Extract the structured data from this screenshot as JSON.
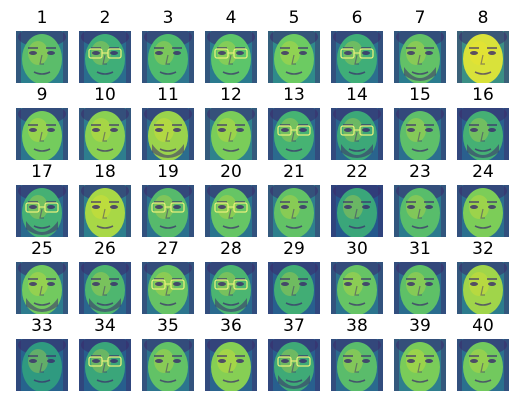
{
  "grid": {
    "rows": 5,
    "cols": 8,
    "colormap": "viridis",
    "colors": {
      "dark": "#3b2a6b",
      "teal": "#1f9a8a",
      "green": "#4cc26c",
      "yellow": "#fde725"
    },
    "faces": [
      {
        "label": "1",
        "glasses": false,
        "beard": false,
        "tone": "#5bbd6a",
        "bg": "#2b7f8e"
      },
      {
        "label": "2",
        "glasses": true,
        "beard": false,
        "tone": "#3fae78",
        "bg": "#2a6c8e"
      },
      {
        "label": "3",
        "glasses": false,
        "beard": false,
        "tone": "#4fbb6e",
        "bg": "#2d758f"
      },
      {
        "label": "4",
        "glasses": true,
        "beard": false,
        "tone": "#5cc56a",
        "bg": "#2a7a8e"
      },
      {
        "label": "5",
        "glasses": false,
        "beard": false,
        "tone": "#6ccb62",
        "bg": "#2f8a8b"
      },
      {
        "label": "6",
        "glasses": true,
        "beard": false,
        "tone": "#3fae78",
        "bg": "#2b6f8e"
      },
      {
        "label": "7",
        "glasses": false,
        "beard": true,
        "tone": "#62c167",
        "bg": "#2a7c8e"
      },
      {
        "label": "8",
        "glasses": false,
        "beard": false,
        "tone": "#d9e23a",
        "bg": "#3b8f85"
      },
      {
        "label": "9",
        "glasses": false,
        "beard": false,
        "tone": "#74cc5d",
        "bg": "#2b768e"
      },
      {
        "label": "10",
        "glasses": false,
        "beard": false,
        "tone": "#8ad152",
        "bg": "#2e7d8e"
      },
      {
        "label": "11",
        "glasses": false,
        "beard": true,
        "tone": "#9ad34c",
        "bg": "#2c6d8e"
      },
      {
        "label": "12",
        "glasses": false,
        "beard": false,
        "tone": "#7acd59",
        "bg": "#2f828c"
      },
      {
        "label": "13",
        "glasses": true,
        "beard": false,
        "tone": "#46b373",
        "bg": "#2b6a8e"
      },
      {
        "label": "14",
        "glasses": true,
        "beard": true,
        "tone": "#3ca878",
        "bg": "#2a648e"
      },
      {
        "label": "15",
        "glasses": false,
        "beard": false,
        "tone": "#5ebf6a",
        "bg": "#2b6f8e"
      },
      {
        "label": "16",
        "glasses": false,
        "beard": true,
        "tone": "#45b074",
        "bg": "#2a5f8e"
      },
      {
        "label": "17",
        "glasses": true,
        "beard": true,
        "tone": "#45b074",
        "bg": "#2a6a8e"
      },
      {
        "label": "18",
        "glasses": false,
        "beard": false,
        "tone": "#a8d846",
        "bg": "#2e7f8d"
      },
      {
        "label": "19",
        "glasses": true,
        "beard": false,
        "tone": "#56ba6c",
        "bg": "#2b708e"
      },
      {
        "label": "20",
        "glasses": true,
        "beard": false,
        "tone": "#66c565",
        "bg": "#2a748e"
      },
      {
        "label": "21",
        "glasses": false,
        "beard": false,
        "tone": "#62c266",
        "bg": "#2e808d"
      },
      {
        "label": "22",
        "glasses": false,
        "beard": false,
        "tone": "#3aa67a",
        "bg": "#25588c"
      },
      {
        "label": "23",
        "glasses": false,
        "beard": false,
        "tone": "#58bd6b",
        "bg": "#2b7a8e"
      },
      {
        "label": "24",
        "glasses": false,
        "beard": false,
        "tone": "#7ccd58",
        "bg": "#2b6f8e"
      },
      {
        "label": "25",
        "glasses": false,
        "beard": true,
        "tone": "#72ca5f",
        "bg": "#2d7c8e"
      },
      {
        "label": "26",
        "glasses": false,
        "beard": true,
        "tone": "#4eb66f",
        "bg": "#2a668e"
      },
      {
        "label": "27",
        "glasses": true,
        "beard": false,
        "tone": "#66c365",
        "bg": "#2c758e"
      },
      {
        "label": "28",
        "glasses": true,
        "beard": true,
        "tone": "#4bb571",
        "bg": "#2a6a8e"
      },
      {
        "label": "29",
        "glasses": false,
        "beard": false,
        "tone": "#41ad75",
        "bg": "#285f8e"
      },
      {
        "label": "30",
        "glasses": false,
        "beard": false,
        "tone": "#66c465",
        "bg": "#2b748e"
      },
      {
        "label": "31",
        "glasses": false,
        "beard": false,
        "tone": "#5ec067",
        "bg": "#2a6c8e"
      },
      {
        "label": "32",
        "glasses": false,
        "beard": false,
        "tone": "#a0d54a",
        "bg": "#2d7c8d"
      },
      {
        "label": "33",
        "glasses": false,
        "beard": false,
        "tone": "#2f9a80",
        "bg": "#26638d"
      },
      {
        "label": "34",
        "glasses": true,
        "beard": false,
        "tone": "#3aa67a",
        "bg": "#275e8d"
      },
      {
        "label": "35",
        "glasses": false,
        "beard": false,
        "tone": "#62c266",
        "bg": "#2c758e"
      },
      {
        "label": "36",
        "glasses": false,
        "beard": false,
        "tone": "#86cf54",
        "bg": "#2a648e"
      },
      {
        "label": "37",
        "glasses": true,
        "beard": true,
        "tone": "#3faa77",
        "bg": "#285f8e"
      },
      {
        "label": "38",
        "glasses": false,
        "beard": false,
        "tone": "#5abc6b",
        "bg": "#2a6a8e"
      },
      {
        "label": "39",
        "glasses": false,
        "beard": false,
        "tone": "#7acc59",
        "bg": "#2e7e8d"
      },
      {
        "label": "40",
        "glasses": false,
        "beard": false,
        "tone": "#72c95e",
        "bg": "#2b708e"
      }
    ]
  }
}
